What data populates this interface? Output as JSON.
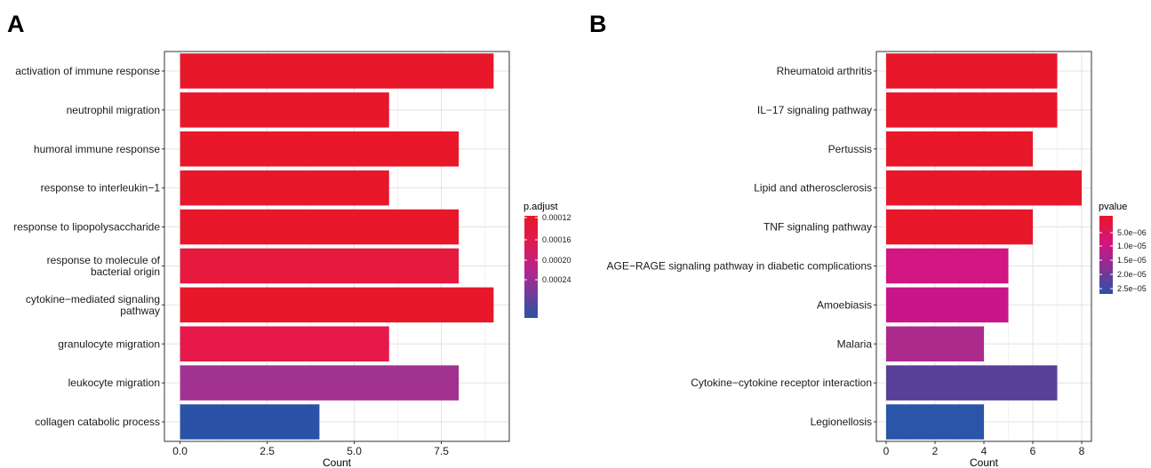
{
  "chart_data": [
    {
      "type": "bar",
      "orientation": "horizontal",
      "panel_label": "A",
      "categories": [
        "activation of immune response",
        "neutrophil migration",
        "humoral immune response",
        "response to interleukin−1",
        "response to lipopolysaccharide",
        [
          "response to molecule of",
          "bacterial origin"
        ],
        [
          "cytokine−mediated signaling",
          "pathway"
        ],
        "granulocyte migration",
        "leukocyte migration",
        "collagen catabolic process"
      ],
      "values": [
        9,
        6,
        8,
        6,
        8,
        8,
        9,
        6,
        8,
        4
      ],
      "colors": [
        "#e8172a",
        "#e8172a",
        "#e8172a",
        "#e8172a",
        "#e8172a",
        "#e51a3e",
        "#e8172a",
        "#e6194a",
        "#a23290",
        "#2a52a6"
      ],
      "xlabel": "Count",
      "xticks": [
        0.0,
        2.5,
        5.0,
        7.5
      ],
      "xtick_labels": [
        "0.0",
        "2.5",
        "5.0",
        "7.5"
      ],
      "xlim": [
        -0.45,
        9.45
      ],
      "grid": true,
      "legend": {
        "title": "p.adjust",
        "placement": "right",
        "labels": [
          "0.00012",
          "0.00016",
          "0.00020",
          "0.00024"
        ],
        "color_low": "#e8172a",
        "color_mid": "#b0288f",
        "color_high": "#2a52a6"
      }
    },
    {
      "type": "bar",
      "orientation": "horizontal",
      "panel_label": "B",
      "categories": [
        "Rheumatoid arthritis",
        "IL−17 signaling pathway",
        "Pertussis",
        "Lipid and atherosclerosis",
        "TNF signaling pathway",
        "AGE−RAGE signaling pathway in diabetic complications",
        "Amoebiasis",
        "Malaria",
        "Cytokine−cytokine receptor interaction",
        "Legionellosis"
      ],
      "values": [
        7,
        7,
        6,
        8,
        6,
        5,
        5,
        4,
        7,
        4
      ],
      "colors": [
        "#e8172a",
        "#e8172a",
        "#e8172a",
        "#e8172a",
        "#e8172a",
        "#d21580",
        "#c8168a",
        "#ad2a8d",
        "#5a3f98",
        "#2a55a8"
      ],
      "xlabel": "Count",
      "xticks": [
        0,
        2,
        4,
        6,
        8
      ],
      "xtick_labels": [
        "0",
        "2",
        "4",
        "6",
        "8"
      ],
      "xlim": [
        -0.4,
        8.4
      ],
      "grid": true,
      "legend": {
        "title": "pvalue",
        "placement": "right",
        "labels": [
          "5.0e−06",
          "1.0e−05",
          "1.5e−05",
          "2.0e−05",
          "2.5e−05"
        ],
        "color_low": "#e8172a",
        "color_mid": "#b0288f",
        "color_high": "#2a52a6"
      }
    }
  ]
}
